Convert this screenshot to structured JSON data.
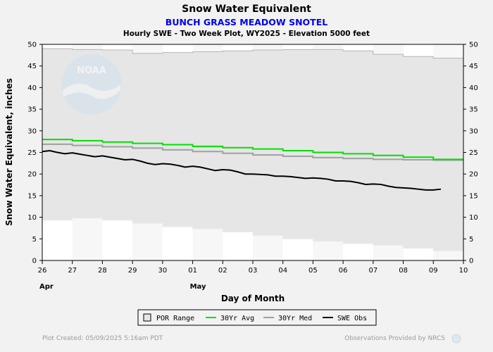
{
  "page": {
    "title": "Snow Water Equivalent",
    "subtitle": "BUNCH GRASS MEADOW SNOTEL",
    "info": "Hourly SWE - Two Week Plot, WY2025 -  Elevation 5000 feet",
    "footer_left": "Plot Created: 05/09/2025 5:16am PDT",
    "footer_right": "Observations Provided by NRCS",
    "logo_text": "NOAA"
  },
  "colors": {
    "background": "#f2f2f2",
    "plot_bg": "#ffffff",
    "por_range": "#e6e6e6",
    "avg": "#00e000",
    "median": "#a0a0a0",
    "obs": "#000000",
    "subtitle": "#0000ee"
  },
  "chart_data": {
    "type": "line",
    "title": "Snow Water Equivalent",
    "subtitle": "BUNCH GRASS MEADOW SNOTEL",
    "xlabel": "Day of Month",
    "ylabel": "Snow Water Equivalent, inches",
    "ylim": [
      0,
      50
    ],
    "yticks": [
      0,
      5,
      10,
      15,
      20,
      25,
      30,
      35,
      40,
      45,
      50
    ],
    "x_tick_labels": [
      "26",
      "27",
      "28",
      "29",
      "30",
      "01",
      "02",
      "03",
      "04",
      "05",
      "06",
      "07",
      "08",
      "09",
      "10"
    ],
    "month_labels": [
      {
        "label": "Apr",
        "at_tick": 0
      },
      {
        "label": "May",
        "at_tick": 5
      }
    ],
    "grid": false,
    "legend_position": "bottom",
    "series": [
      {
        "name": "POR Range",
        "kind": "band",
        "days": [
          0,
          1,
          2,
          3,
          4,
          5,
          6,
          7,
          8,
          9,
          10,
          11,
          12,
          13,
          14
        ],
        "upper": [
          49.0,
          48.8,
          48.7,
          47.9,
          48.1,
          48.3,
          48.5,
          48.7,
          48.8,
          48.8,
          48.5,
          47.7,
          47.2,
          46.8,
          46.8
        ],
        "lower": [
          9.3,
          9.8,
          9.3,
          8.6,
          7.8,
          7.3,
          6.6,
          5.8,
          5.0,
          4.4,
          3.9,
          3.5,
          2.8,
          2.2,
          2.2
        ]
      },
      {
        "name": "30Yr Avg",
        "kind": "step",
        "days": [
          0,
          1,
          2,
          3,
          4,
          5,
          6,
          7,
          8,
          9,
          10,
          11,
          12,
          13,
          14
        ],
        "values": [
          28.0,
          27.7,
          27.4,
          27.1,
          26.8,
          26.4,
          26.1,
          25.8,
          25.4,
          25.0,
          24.7,
          24.3,
          23.9,
          23.4,
          23.4
        ]
      },
      {
        "name": "30Yr Med",
        "kind": "step",
        "days": [
          0,
          1,
          2,
          3,
          4,
          5,
          6,
          7,
          8,
          9,
          10,
          11,
          12,
          13,
          14
        ],
        "values": [
          26.9,
          26.6,
          26.3,
          26.0,
          25.6,
          25.2,
          24.8,
          24.4,
          24.1,
          23.8,
          23.6,
          23.4,
          23.3,
          23.2,
          23.2
        ]
      },
      {
        "name": "SWE Obs",
        "kind": "line",
        "days": [
          0.0,
          0.25,
          0.5,
          0.75,
          1.0,
          1.25,
          1.5,
          1.75,
          2.0,
          2.25,
          2.5,
          2.75,
          3.0,
          3.25,
          3.5,
          3.75,
          4.0,
          4.25,
          4.5,
          4.75,
          5.0,
          5.25,
          5.5,
          5.75,
          6.0,
          6.25,
          6.5,
          6.75,
          7.0,
          7.25,
          7.5,
          7.75,
          8.0,
          8.25,
          8.5,
          8.75,
          9.0,
          9.25,
          9.5,
          9.75,
          10.0,
          10.25,
          10.5,
          10.75,
          11.0,
          11.25,
          11.5,
          11.75,
          12.0,
          12.25,
          12.5,
          12.75,
          13.0,
          13.25
        ],
        "values": [
          25.2,
          25.4,
          25.0,
          24.7,
          24.9,
          24.6,
          24.3,
          24.0,
          24.2,
          23.9,
          23.6,
          23.3,
          23.4,
          23.0,
          22.5,
          22.2,
          22.4,
          22.3,
          22.0,
          21.6,
          21.8,
          21.6,
          21.2,
          20.8,
          21.0,
          20.9,
          20.5,
          20.0,
          20.0,
          19.9,
          19.8,
          19.5,
          19.5,
          19.4,
          19.2,
          19.0,
          19.1,
          19.0,
          18.8,
          18.4,
          18.4,
          18.3,
          18.0,
          17.6,
          17.7,
          17.6,
          17.2,
          16.9,
          16.8,
          16.7,
          16.5,
          16.3,
          16.3,
          16.5
        ]
      }
    ]
  }
}
